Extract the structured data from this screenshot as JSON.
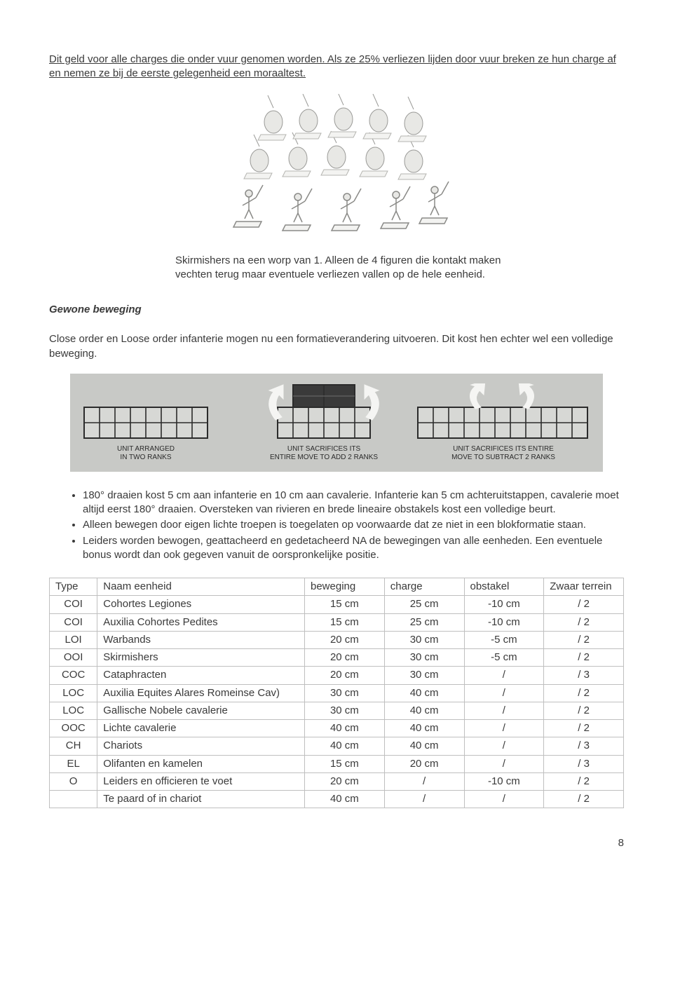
{
  "intro_line1": "Dit geld voor alle charges die onder vuur genomen worden.",
  "intro_line2": " Als ze 25% verliezen lijden door vuur breken ze hun charge af en nemen ze bij de eerste gelegenheid een moraaltest.",
  "caption_line1": "Skirmishers na een worp van 1. Alleen de 4 figuren die kontakt maken",
  "caption_line2": "vechten terug maar eventuele verliezen vallen op de hele eenheid.",
  "heading_gewone": "Gewone beweging",
  "para_close_order": "Close order en Loose order infanterie mogen nu een formatieverandering uitvoeren. Dit kost hen echter wel een volledige beweging.",
  "formation_labels": {
    "left_l1": "UNIT ARRANGED",
    "left_l2": "IN TWO RANKS",
    "mid_l1": "UNIT SACRIFICES ITS",
    "mid_l2": "ENTIRE MOVE TO ADD 2 RANKS",
    "right_l1": "UNIT SACRIFICES ITS ENTIRE",
    "right_l2": "MOVE TO SUBTRACT 2 RANKS"
  },
  "bullets": [
    "180° draaien kost 5 cm aan infanterie en 10 cm aan cavalerie. Infanterie kan 5 cm achteruitstappen, cavalerie moet altijd eerst 180° draaien. Oversteken van rivieren en brede lineaire obstakels kost een volledige beurt.",
    "Alleen bewegen door eigen lichte troepen is toegelaten op voorwaarde dat ze niet in een blokformatie staan.",
    "Leiders worden bewogen, geattacheerd en gedetacheerd NA de bewegingen van alle eenheden. Een eventuele bonus wordt dan ook gegeven vanuit de oorspronkelijke positie."
  ],
  "table": {
    "headers": [
      "Type",
      "Naam eenheid",
      "beweging",
      "charge",
      "obstakel",
      "Zwaar terrein"
    ],
    "rows": [
      [
        "COI",
        "Cohortes Legiones",
        "15 cm",
        "25 cm",
        "-10 cm",
        "/ 2"
      ],
      [
        "COI",
        "Auxilia Cohortes Pedites",
        "15 cm",
        "25 cm",
        "-10 cm",
        "/ 2"
      ],
      [
        "LOI",
        "Warbands",
        "20 cm",
        "30 cm",
        "-5 cm",
        "/ 2"
      ],
      [
        "OOI",
        "Skirmishers",
        "20 cm",
        "30 cm",
        "-5 cm",
        "/ 2"
      ],
      [
        "COC",
        "Cataphracten",
        "20 cm",
        "30 cm",
        "/",
        "/ 3"
      ],
      [
        "LOC",
        "Auxilia Equites Alares Romeinse Cav)",
        "30 cm",
        "40 cm",
        "/",
        "/ 2"
      ],
      [
        "LOC",
        "Gallische Nobele cavalerie",
        "30 cm",
        "40 cm",
        "/",
        "/ 2"
      ],
      [
        "OOC",
        "Lichte cavalerie",
        "40 cm",
        "40 cm",
        "/",
        "/ 2"
      ],
      [
        "CH",
        "Chariots",
        "40 cm",
        "40 cm",
        "/",
        "/ 3"
      ],
      [
        "EL",
        "Olifanten en kamelen",
        "15 cm",
        "20 cm",
        "/",
        "/ 3"
      ],
      [
        "O",
        "Leiders en officieren te voet",
        "20 cm",
        "/",
        "-10 cm",
        "/ 2"
      ],
      [
        "",
        "Te paard of in chariot",
        "40 cm",
        "/",
        "/",
        "/ 2"
      ]
    ]
  },
  "page_number": "8"
}
